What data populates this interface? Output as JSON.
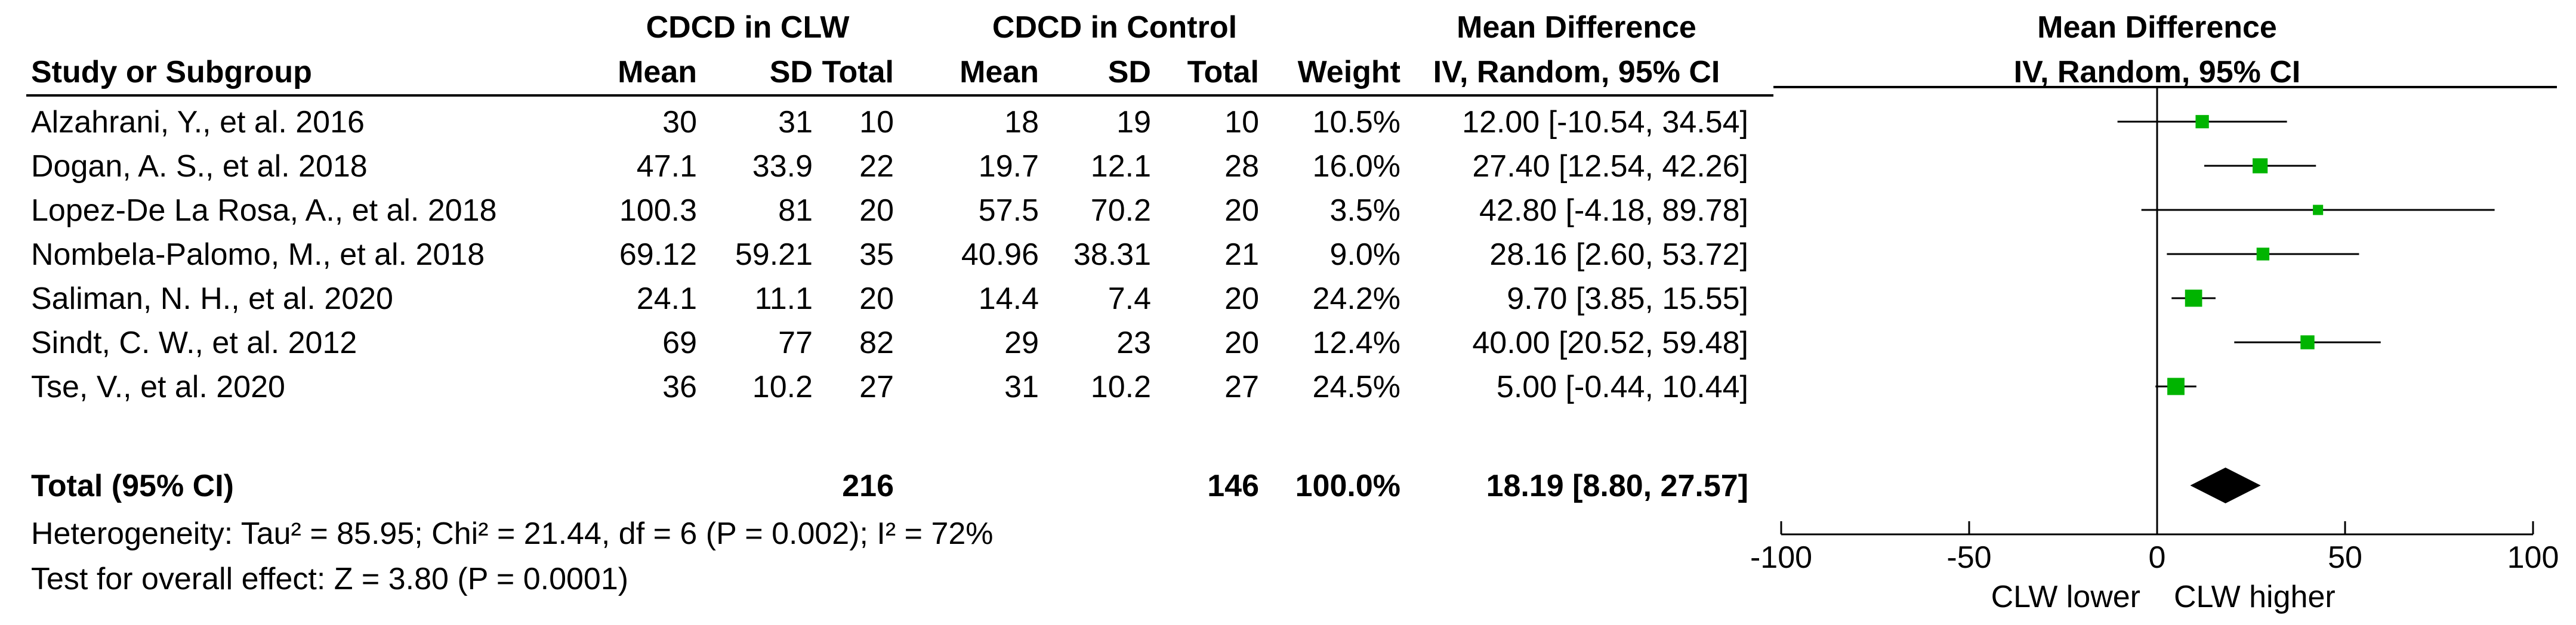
{
  "chart_data": {
    "type": "forest",
    "group_headers": {
      "experimental": "CDCD in CLW",
      "control": "CDCD in Control",
      "effect": "Mean Difference",
      "plot": "Mean Difference"
    },
    "columns": {
      "study": "Study or Subgroup",
      "mean1": "Mean",
      "sd1": "SD",
      "total1": "Total",
      "mean2": "Mean",
      "sd2": "SD",
      "total2": "Total",
      "weight": "Weight",
      "effect_method": "IV, Random, 95% CI",
      "plot_method": "IV, Random, 95% CI"
    },
    "studies": [
      {
        "name": "Alzahrani, Y., et al. 2016",
        "mean1": "30",
        "sd1": "31",
        "total1": "10",
        "mean2": "18",
        "sd2": "19",
        "total2": "10",
        "weight": "10.5%",
        "ci_text": "12.00 [-10.54, 34.54]",
        "md": 12.0,
        "lo": -10.54,
        "hi": 34.54,
        "w": 10.5
      },
      {
        "name": "Dogan, A. S., et al. 2018",
        "mean1": "47.1",
        "sd1": "33.9",
        "total1": "22",
        "mean2": "19.7",
        "sd2": "12.1",
        "total2": "28",
        "weight": "16.0%",
        "ci_text": "27.40 [12.54, 42.26]",
        "md": 27.4,
        "lo": 12.54,
        "hi": 42.26,
        "w": 16.0
      },
      {
        "name": "Lopez-De La Rosa, A., et al. 2018",
        "mean1": "100.3",
        "sd1": "81",
        "total1": "20",
        "mean2": "57.5",
        "sd2": "70.2",
        "total2": "20",
        "weight": "3.5%",
        "ci_text": "42.80 [-4.18, 89.78]",
        "md": 42.8,
        "lo": -4.18,
        "hi": 89.78,
        "w": 3.5
      },
      {
        "name": "Nombela-Palomo, M., et al. 2018",
        "mean1": "69.12",
        "sd1": "59.21",
        "total1": "35",
        "mean2": "40.96",
        "sd2": "38.31",
        "total2": "21",
        "weight": "9.0%",
        "ci_text": "28.16 [2.60, 53.72]",
        "md": 28.16,
        "lo": 2.6,
        "hi": 53.72,
        "w": 9.0
      },
      {
        "name": "Saliman, N. H., et al. 2020",
        "mean1": "24.1",
        "sd1": "11.1",
        "total1": "20",
        "mean2": "14.4",
        "sd2": "7.4",
        "total2": "20",
        "weight": "24.2%",
        "ci_text": "9.70 [3.85, 15.55]",
        "md": 9.7,
        "lo": 3.85,
        "hi": 15.55,
        "w": 24.2
      },
      {
        "name": "Sindt, C. W., et al. 2012",
        "mean1": "69",
        "sd1": "77",
        "total1": "82",
        "mean2": "29",
        "sd2": "23",
        "total2": "20",
        "weight": "12.4%",
        "ci_text": "40.00 [20.52, 59.48]",
        "md": 40.0,
        "lo": 20.52,
        "hi": 59.48,
        "w": 12.4
      },
      {
        "name": "Tse, V., et al. 2020",
        "mean1": "36",
        "sd1": "10.2",
        "total1": "27",
        "mean2": "31",
        "sd2": "10.2",
        "total2": "27",
        "weight": "24.5%",
        "ci_text": "5.00 [-0.44, 10.44]",
        "md": 5.0,
        "lo": -0.44,
        "hi": 10.44,
        "w": 24.5
      }
    ],
    "total": {
      "label": "Total (95% CI)",
      "total1": "216",
      "total2": "146",
      "weight": "100.0%",
      "ci_text": "18.19 [8.80, 27.57]",
      "md": 18.19,
      "lo": 8.8,
      "hi": 27.57
    },
    "heterogeneity": "Heterogeneity: Tau² = 85.95; Chi² = 21.44, df = 6 (P = 0.002); I² = 72%",
    "overall_effect": "Test for overall effect: Z = 3.80 (P = 0.0001)",
    "x_axis": {
      "xlim": [
        -100,
        100
      ],
      "ticks": [
        -100,
        -50,
        0,
        50,
        100
      ],
      "tick_labels": [
        "-100",
        "-50",
        "0",
        "50",
        "100"
      ],
      "left_label": "CLW lower",
      "right_label": "CLW higher"
    },
    "colors": {
      "study_marker": "#00b400",
      "pooled_diamond": "#000000",
      "lines": "#000000"
    }
  }
}
